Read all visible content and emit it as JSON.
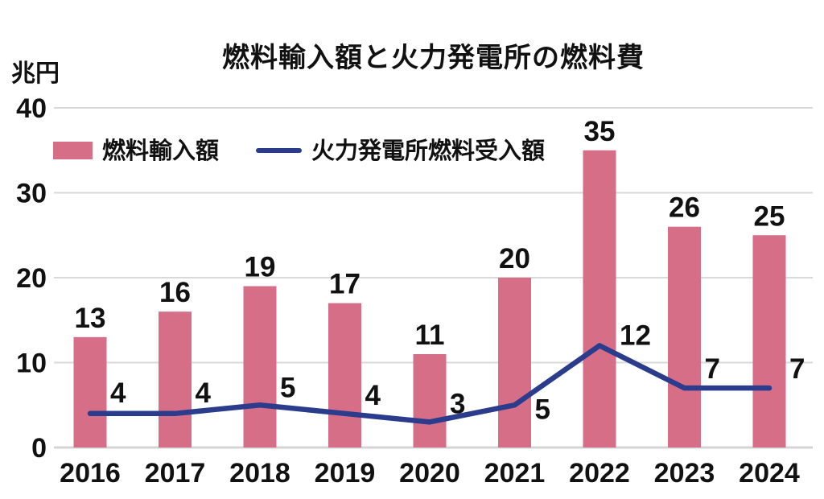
{
  "title": "燃料輸入額と火力発電所の燃料費",
  "unit_label": "兆円",
  "legend": {
    "bar_label": "燃料輸入額",
    "line_label": "火力発電所燃料受入額"
  },
  "colors": {
    "bar": "#d66e88",
    "line": "#2b3c8c",
    "grid": "#d9d9d9",
    "baseline": "#d4d4d4",
    "text": "#111111"
  },
  "chart_data": {
    "type": "combo",
    "title": "燃料輸入額と火力発電所の燃料費",
    "ylabel": "兆円",
    "categories": [
      "2016",
      "2017",
      "2018",
      "2019",
      "2020",
      "2021",
      "2022",
      "2023",
      "2024"
    ],
    "series": [
      {
        "name": "燃料輸入額",
        "type": "bar",
        "color": "#d66e88",
        "values": [
          13,
          16,
          19,
          17,
          11,
          20,
          35,
          26,
          25
        ]
      },
      {
        "name": "火力発電所燃料受入額",
        "type": "line",
        "color": "#2b3c8c",
        "values": [
          4,
          4,
          5,
          4,
          3,
          5,
          12,
          7,
          7
        ]
      }
    ],
    "ylim": [
      0,
      40
    ],
    "yticks": [
      0,
      10,
      20,
      30,
      40
    ],
    "grid": true,
    "data_labels": true,
    "legend_position": "top-left"
  }
}
